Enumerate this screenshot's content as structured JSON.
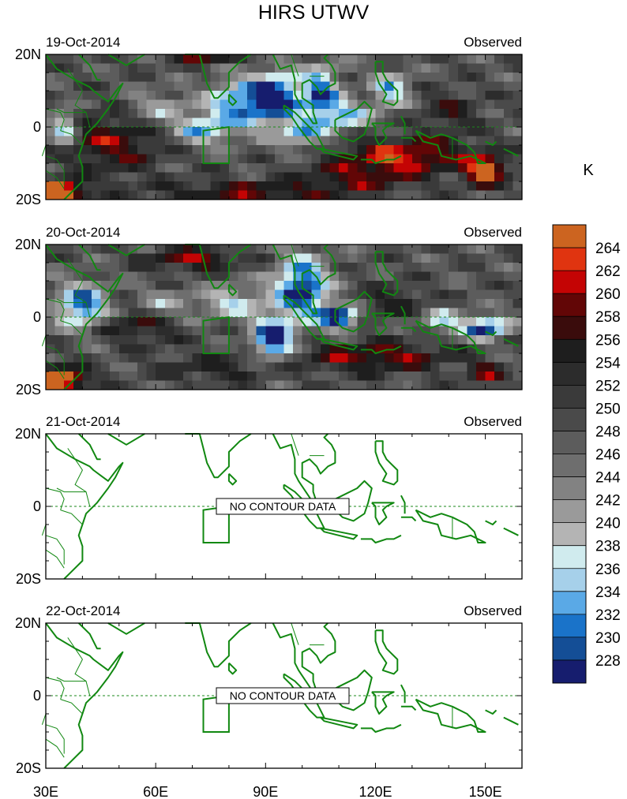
{
  "title": "HIRS UTWV",
  "colorbar": {
    "unit": "K",
    "levels": [
      "228",
      "230",
      "232",
      "234",
      "236",
      "238",
      "240",
      "242",
      "244",
      "246",
      "248",
      "250",
      "252",
      "254",
      "256",
      "258",
      "260",
      "262",
      "264"
    ],
    "colors": [
      "#161d6e",
      "#144e96",
      "#1a73c9",
      "#5aa9e6",
      "#a6d0ea",
      "#d0ebee",
      "#b4b4b4",
      "#9a9a9a",
      "#828282",
      "#6e6e6e",
      "#5c5c5c",
      "#4a4a4a",
      "#3a3a3a",
      "#2c2c2c",
      "#1e1e1e",
      "#3a0c0c",
      "#620606",
      "#c40404",
      "#e03410",
      "#cc6420"
    ]
  },
  "chart_data": [
    {
      "type": "heatmap",
      "date": "19-Oct-2014",
      "label": "Observed",
      "has_data": true,
      "lat_labels": [
        "20N",
        "0",
        "20S"
      ],
      "lon_labels": [
        "30E",
        "60E",
        "90E",
        "120E",
        "150E"
      ],
      "xlim": [
        30,
        160
      ],
      "ylim": [
        -20,
        20
      ]
    },
    {
      "type": "heatmap",
      "date": "20-Oct-2014",
      "label": "Observed",
      "has_data": true,
      "lat_labels": [
        "20N",
        "0",
        "20S"
      ],
      "lon_labels": [
        "30E",
        "60E",
        "90E",
        "120E",
        "150E"
      ],
      "xlim": [
        30,
        160
      ],
      "ylim": [
        -20,
        20
      ]
    },
    {
      "type": "heatmap",
      "date": "21-Oct-2014",
      "label": "Observed",
      "has_data": false,
      "no_data_text": "NO CONTOUR DATA",
      "lat_labels": [
        "20N",
        "0",
        "20S"
      ],
      "lon_labels": [
        "30E",
        "60E",
        "90E",
        "120E",
        "150E"
      ],
      "xlim": [
        30,
        160
      ],
      "ylim": [
        -20,
        20
      ]
    },
    {
      "type": "heatmap",
      "date": "22-Oct-2014",
      "label": "Observed",
      "has_data": false,
      "no_data_text": "NO CONTOUR DATA",
      "lat_labels": [
        "20N",
        "0",
        "20S"
      ],
      "lon_labels": [
        "30E",
        "60E",
        "90E",
        "120E",
        "150E"
      ],
      "xlim": [
        30,
        160
      ],
      "ylim": [
        -20,
        20
      ]
    }
  ]
}
